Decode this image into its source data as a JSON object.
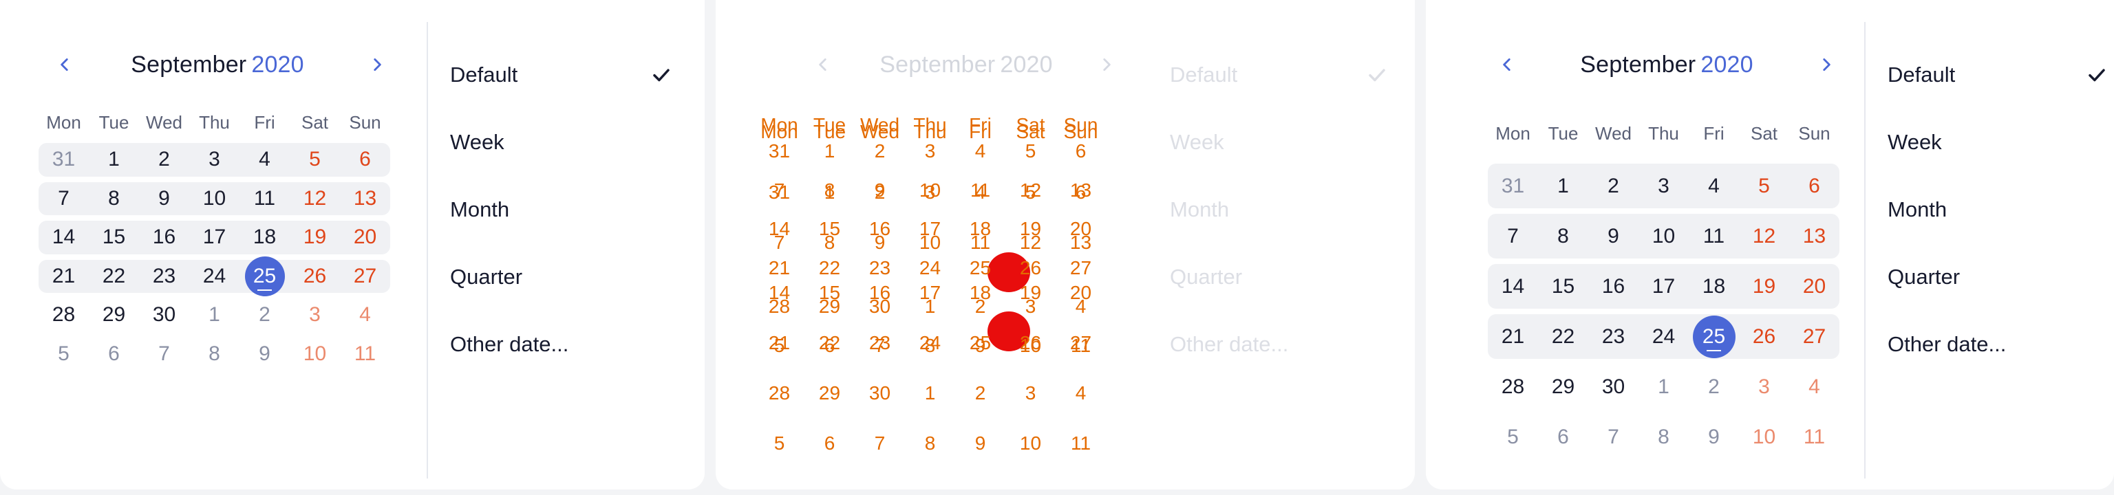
{
  "calendar": {
    "month": "September",
    "year": "2020",
    "weekdays": [
      "Mon",
      "Tue",
      "Wed",
      "Thu",
      "Fri",
      "Sat",
      "Sun"
    ],
    "weeks": [
      [
        {
          "d": "31",
          "o": true
        },
        {
          "d": "1"
        },
        {
          "d": "2"
        },
        {
          "d": "3"
        },
        {
          "d": "4"
        },
        {
          "d": "5",
          "w": true
        },
        {
          "d": "6",
          "w": true
        }
      ],
      [
        {
          "d": "7"
        },
        {
          "d": "8"
        },
        {
          "d": "9"
        },
        {
          "d": "10"
        },
        {
          "d": "11"
        },
        {
          "d": "12",
          "w": true
        },
        {
          "d": "13",
          "w": true
        }
      ],
      [
        {
          "d": "14"
        },
        {
          "d": "15"
        },
        {
          "d": "16"
        },
        {
          "d": "17"
        },
        {
          "d": "18"
        },
        {
          "d": "19",
          "w": true
        },
        {
          "d": "20",
          "w": true
        }
      ],
      [
        {
          "d": "21"
        },
        {
          "d": "22"
        },
        {
          "d": "23"
        },
        {
          "d": "24"
        },
        {
          "d": "25",
          "s": true
        },
        {
          "d": "26",
          "w": true
        },
        {
          "d": "27",
          "w": true
        }
      ],
      [
        {
          "d": "28"
        },
        {
          "d": "29"
        },
        {
          "d": "30"
        },
        {
          "d": "1",
          "o": true
        },
        {
          "d": "2",
          "o": true
        },
        {
          "d": "3",
          "o": true,
          "w": true
        },
        {
          "d": "4",
          "o": true,
          "w": true
        }
      ],
      [
        {
          "d": "5",
          "o": true
        },
        {
          "d": "6",
          "o": true
        },
        {
          "d": "7",
          "o": true
        },
        {
          "d": "8",
          "o": true
        },
        {
          "d": "9",
          "o": true
        },
        {
          "d": "10",
          "o": true,
          "w": true
        },
        {
          "d": "11",
          "o": true,
          "w": true
        }
      ]
    ],
    "highlighted_rows": [
      0,
      1,
      2,
      3
    ]
  },
  "menu": {
    "items": [
      {
        "label": "Default",
        "checked": true
      },
      {
        "label": "Week",
        "checked": false
      },
      {
        "label": "Month",
        "checked": false
      },
      {
        "label": "Quarter",
        "checked": false
      },
      {
        "label": "Other date...",
        "checked": false
      }
    ]
  },
  "icons": {
    "prev": "chevron-left-icon",
    "next": "chevron-right-icon",
    "check": "check-icon"
  },
  "colors": {
    "accent": "#4a67d6",
    "weekend": "#e0461a",
    "glitch_text": "#e46b00",
    "glitch_blob": "#e80d0d"
  }
}
